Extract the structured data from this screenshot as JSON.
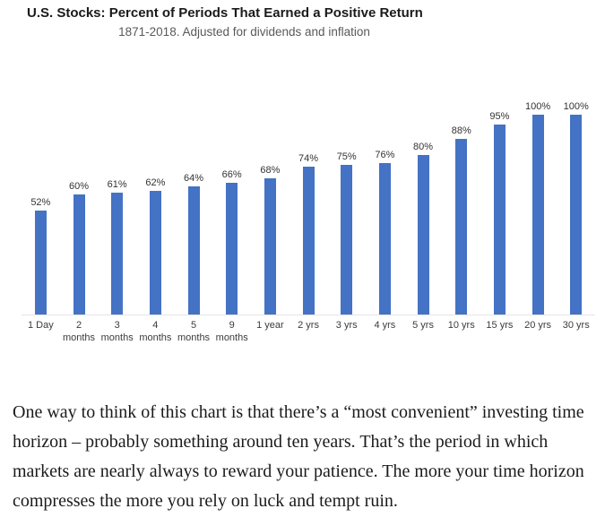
{
  "chart": {
    "title": "U.S. Stocks: Percent of Periods That Earned a Positive Return",
    "subtitle": "1871-2018. Adjusted for dividends and inflation"
  },
  "chart_data": {
    "type": "bar",
    "title": "U.S. Stocks: Percent of Periods That Earned a Positive Return",
    "subtitle": "1871-2018. Adjusted for dividends and inflation",
    "categories": [
      "1 Day",
      "2 months",
      "3 months",
      "4 months",
      "5 months",
      "9 months",
      "1 year",
      "2 yrs",
      "3 yrs",
      "4 yrs",
      "5 yrs",
      "10 yrs",
      "15 yrs",
      "20 yrs",
      "30 yrs"
    ],
    "values": [
      52,
      60,
      61,
      62,
      64,
      66,
      68,
      74,
      75,
      76,
      80,
      88,
      95,
      100,
      100
    ],
    "labels": [
      "52%",
      "60%",
      "61%",
      "62%",
      "64%",
      "66%",
      "68%",
      "74%",
      "75%",
      "76%",
      "80%",
      "88%",
      "95%",
      "100%",
      "100%"
    ],
    "xlabel": "",
    "ylabel": "",
    "ylim": [
      0,
      100
    ],
    "grid": false,
    "legend": "none",
    "bar_color": "#4472C4",
    "axis_line_color": "#e4e4e4"
  },
  "commentary": {
    "text": "One way to think of this chart is that there’s a “most convenient” investing time horizon – probably something around ten years. That’s the period in which markets are nearly always to reward your patience. The more your time horizon compresses the more you rely on luck and tempt ruin."
  }
}
